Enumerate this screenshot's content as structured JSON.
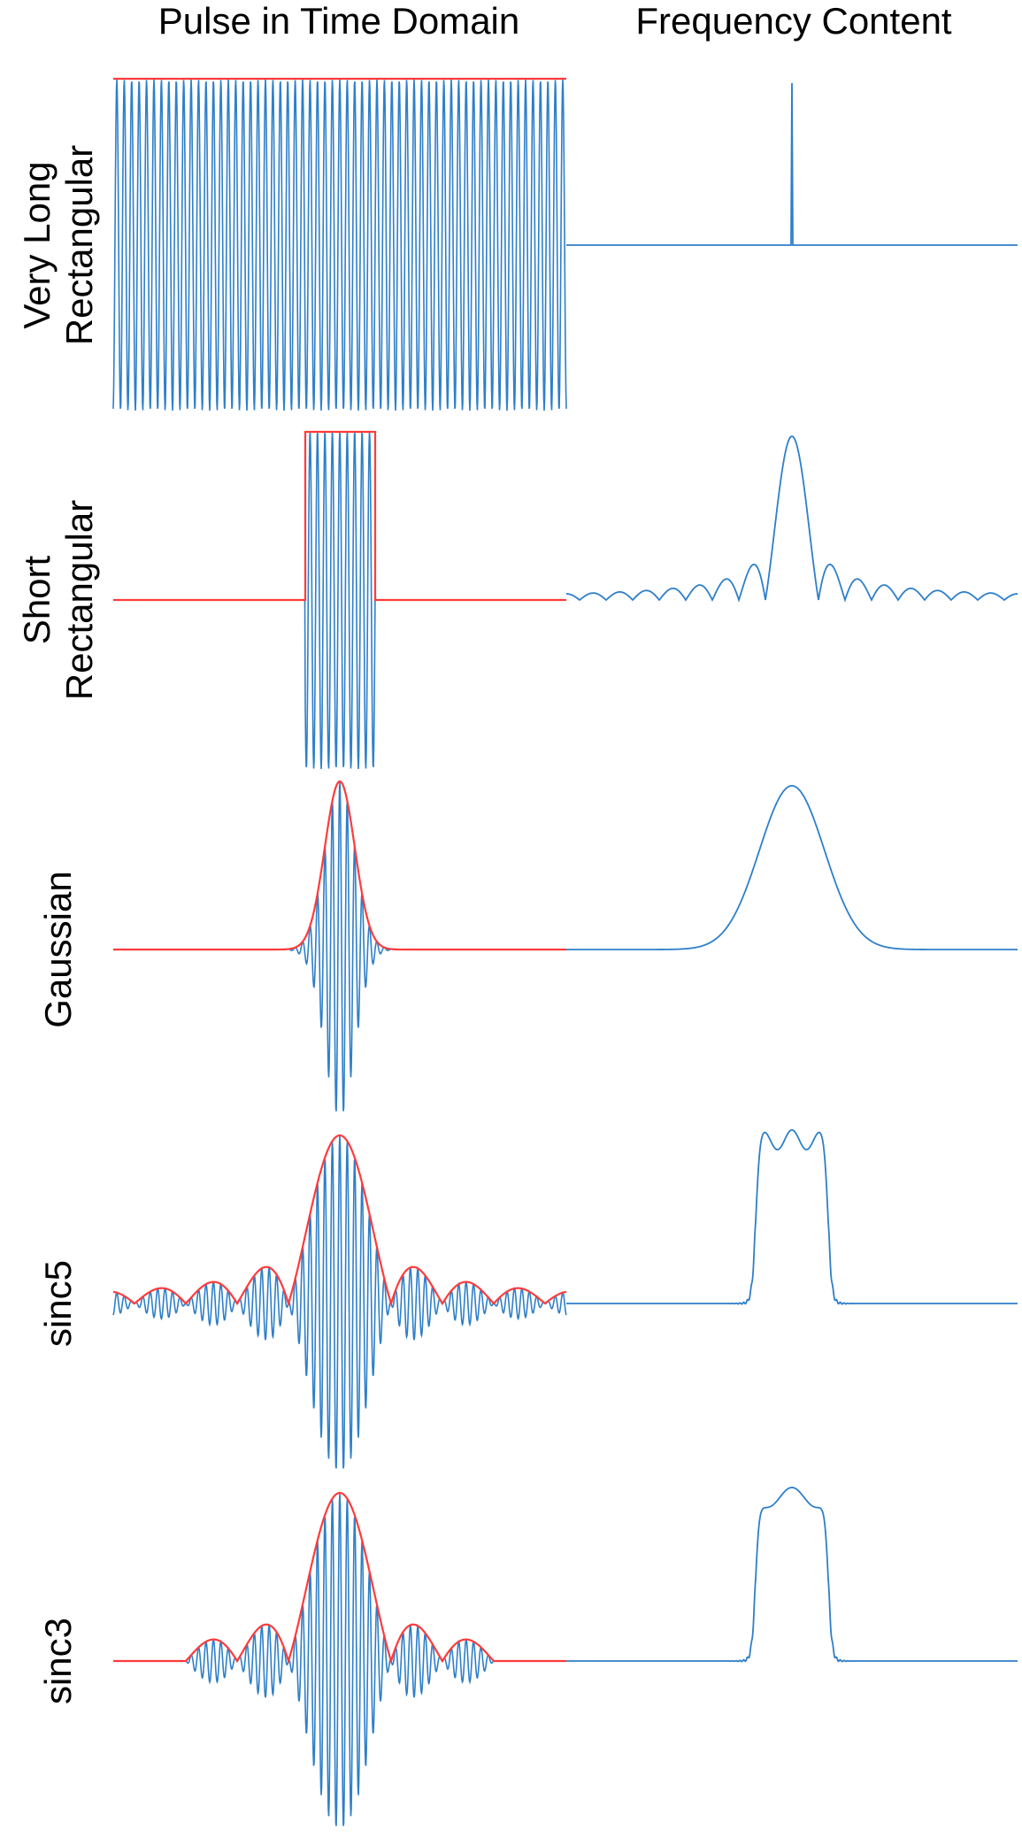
{
  "columns": {
    "time": "Pulse in Time Domain",
    "freq": "Frequency Content"
  },
  "rows": [
    {
      "id": "very-long-rect",
      "label_lines": [
        "Very Long",
        "Rectangular"
      ],
      "envelope": "rect-long"
    },
    {
      "id": "short-rect",
      "label_lines": [
        "Short",
        "Rectangular"
      ],
      "envelope": "rect-short"
    },
    {
      "id": "gaussian",
      "label_lines": [
        "Gaussian"
      ],
      "envelope": "gaussian"
    },
    {
      "id": "sinc5",
      "label_lines": [
        "sinc5"
      ],
      "envelope": "sinc",
      "lobes": 5
    },
    {
      "id": "sinc3",
      "label_lines": [
        "sinc3"
      ],
      "envelope": "sinc",
      "lobes": 3
    }
  ],
  "colors": {
    "carrier": "#2e7fc9",
    "envelope": "#ff3b3b",
    "spectrum": "#2e7fc9",
    "text": "#000000"
  }
}
